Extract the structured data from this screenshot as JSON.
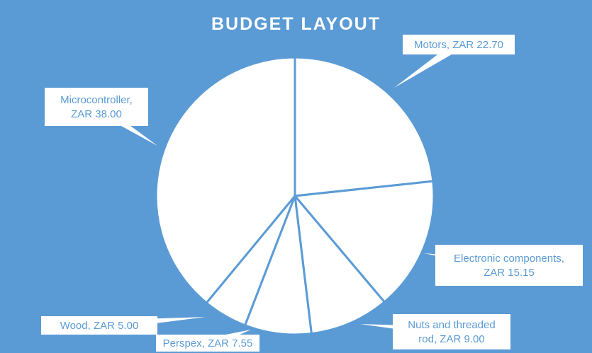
{
  "chart_data": {
    "type": "pie",
    "title": "BUDGET LAYOUT",
    "slices": [
      {
        "label": "Motors",
        "value": 22.7,
        "text": [
          "Motors, ZAR 22.70"
        ]
      },
      {
        "label": "Electronic components",
        "value": 15.15,
        "text": [
          "Electronic components,",
          "ZAR 15.15"
        ]
      },
      {
        "label": "Nuts and threaded rod",
        "value": 9.0,
        "text": [
          "Nuts and threaded",
          "rod, ZAR 9.00"
        ]
      },
      {
        "label": "Perspex",
        "value": 7.55,
        "text": [
          "Perspex, ZAR 7.55"
        ]
      },
      {
        "label": "Wood",
        "value": 5.0,
        "text": [
          "Wood, ZAR 5.00"
        ]
      },
      {
        "label": "Microcontroller",
        "value": 38.0,
        "text": [
          "Microcontroller,",
          "ZAR 38.00"
        ]
      }
    ],
    "currency": "ZAR",
    "legend": "none",
    "data_labels": "callouts",
    "colors": {
      "background": "#5b9bd5",
      "slice_fill": "#ffffff",
      "slice_border": "#5b9bd5",
      "label_text": "#5b9bd5"
    }
  }
}
